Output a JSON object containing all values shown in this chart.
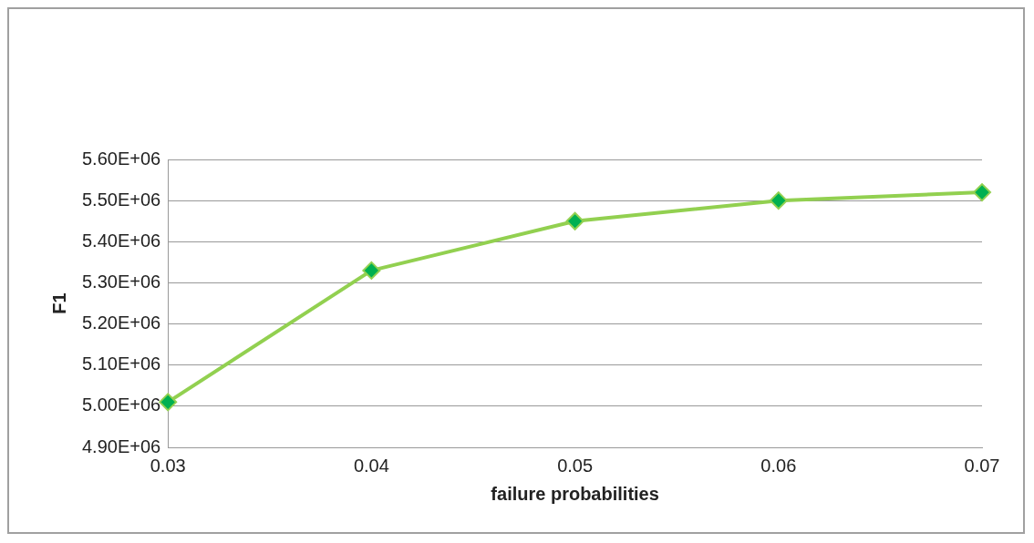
{
  "chart_data": {
    "type": "line",
    "xlabel": "failure probabilities",
    "ylabel": "F1",
    "categories": [
      "0.03",
      "0.04",
      "0.05",
      "0.06",
      "0.07"
    ],
    "series": [
      {
        "color": "#92d050",
        "values": [
          5010000,
          5330000,
          5450000,
          5500000,
          5520000
        ]
      }
    ],
    "ylim": [
      4900000,
      5600000
    ],
    "yticks": [
      {
        "value": 4900000,
        "label": "4.90E+06"
      },
      {
        "value": 5000000,
        "label": "5.00E+06"
      },
      {
        "value": 5100000,
        "label": "5.10E+06"
      },
      {
        "value": 5200000,
        "label": "5.20E+06"
      },
      {
        "value": 5300000,
        "label": "5.30E+06"
      },
      {
        "value": 5400000,
        "label": "5.40E+06"
      },
      {
        "value": 5500000,
        "label": "5.50E+06"
      },
      {
        "value": 5600000,
        "label": "5.60E+06"
      }
    ],
    "grid": "y",
    "legend": false,
    "marker": "diamond",
    "line_style": "solid"
  }
}
